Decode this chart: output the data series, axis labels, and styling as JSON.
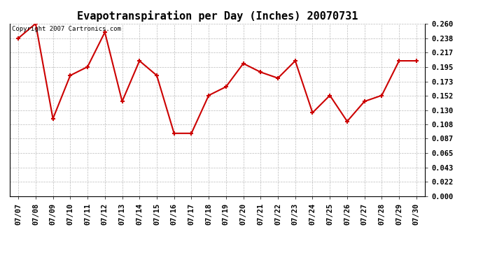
{
  "title": "Evapotranspiration per Day (Inches) 20070731",
  "copyright_text": "Copyright 2007 Cartronics.com",
  "dates": [
    "07/07",
    "07/08",
    "07/09",
    "07/10",
    "07/11",
    "07/12",
    "07/13",
    "07/14",
    "07/15",
    "07/16",
    "07/17",
    "07/18",
    "07/19",
    "07/20",
    "07/21",
    "07/22",
    "07/23",
    "07/24",
    "07/25",
    "07/26",
    "07/27",
    "07/28",
    "07/29",
    "07/30"
  ],
  "values": [
    0.238,
    0.26,
    0.117,
    0.182,
    0.195,
    0.247,
    0.143,
    0.204,
    0.182,
    0.095,
    0.095,
    0.152,
    0.165,
    0.2,
    0.187,
    0.178,
    0.204,
    0.126,
    0.152,
    0.113,
    0.143,
    0.152,
    0.204,
    0.204
  ],
  "line_color": "#cc0000",
  "marker": "+",
  "marker_size": 5,
  "marker_linewidth": 1.5,
  "linewidth": 1.5,
  "ylim": [
    0.0,
    0.26
  ],
  "yticks": [
    0.0,
    0.022,
    0.043,
    0.065,
    0.087,
    0.108,
    0.13,
    0.152,
    0.173,
    0.195,
    0.217,
    0.238,
    0.26
  ],
  "background_color": "#ffffff",
  "grid_color": "#bbbbbb",
  "title_fontsize": 11,
  "tick_fontsize": 7.5,
  "copyright_fontsize": 6.5,
  "fig_width": 6.9,
  "fig_height": 3.75,
  "dpi": 100
}
